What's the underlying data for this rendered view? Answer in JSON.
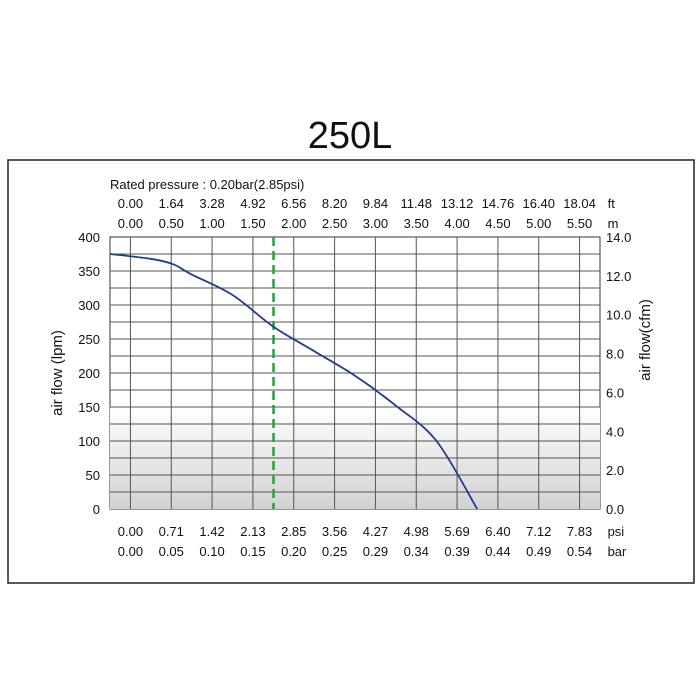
{
  "chart_data": {
    "type": "line",
    "title": "250L",
    "subtitle": "Rated pressure : 0.20bar(2.85psi)",
    "ylabel_left": "air flow (lpm)",
    "ylabel_right": "air flow(cfm)",
    "y_left_ticks": [
      "0",
      "50",
      "100",
      "150",
      "200",
      "250",
      "300",
      "350",
      "400"
    ],
    "y_right_ticks": [
      "0.0",
      "2.0",
      "4.0",
      "6.0",
      "8.0",
      "10.0",
      "12.0",
      "14.0"
    ],
    "ylim_left": [
      0,
      400
    ],
    "ylim_right": [
      0,
      14
    ],
    "x_bottom_psi": {
      "unit": "psi",
      "ticks": [
        "0.00",
        "0.71",
        "1.42",
        "2.13",
        "2.85",
        "3.56",
        "4.27",
        "4.98",
        "5.69",
        "6.40",
        "7.12",
        "7.83"
      ]
    },
    "x_bottom_bar": {
      "unit": "bar",
      "ticks": [
        "0.00",
        "0.05",
        "0.10",
        "0.15",
        "0.20",
        "0.25",
        "0.29",
        "0.34",
        "0.39",
        "0.44",
        "0.49",
        "0.54"
      ]
    },
    "x_top_ft": {
      "unit": "ft",
      "ticks": [
        "0.00",
        "1.64",
        "3.28",
        "4.92",
        "6.56",
        "8.20",
        "9.84",
        "11.48",
        "13.12",
        "14.76",
        "16.40",
        "18.04"
      ]
    },
    "x_top_m": {
      "unit": "m",
      "ticks": [
        "0.00",
        "0.50",
        "1.00",
        "1.50",
        "2.00",
        "2.50",
        "3.00",
        "3.50",
        "4.00",
        "4.50",
        "5.00",
        "5.50"
      ]
    },
    "xlim_psi": [
      0,
      8.54
    ],
    "series": [
      {
        "x_psi": [
          0.0,
          0.71,
          1.1,
          1.42,
          2.13,
          2.85,
          3.56,
          4.27,
          4.98,
          5.69,
          6.4
        ],
        "y_lpm": [
          375,
          368,
          360,
          345,
          315,
          268,
          232,
          196,
          152,
          100,
          0
        ],
        "color": "#1f3d8a"
      }
    ],
    "rated_line": {
      "x_psi": 2.85,
      "color": "#22a33a",
      "style": "dashed"
    },
    "grid": true
  }
}
